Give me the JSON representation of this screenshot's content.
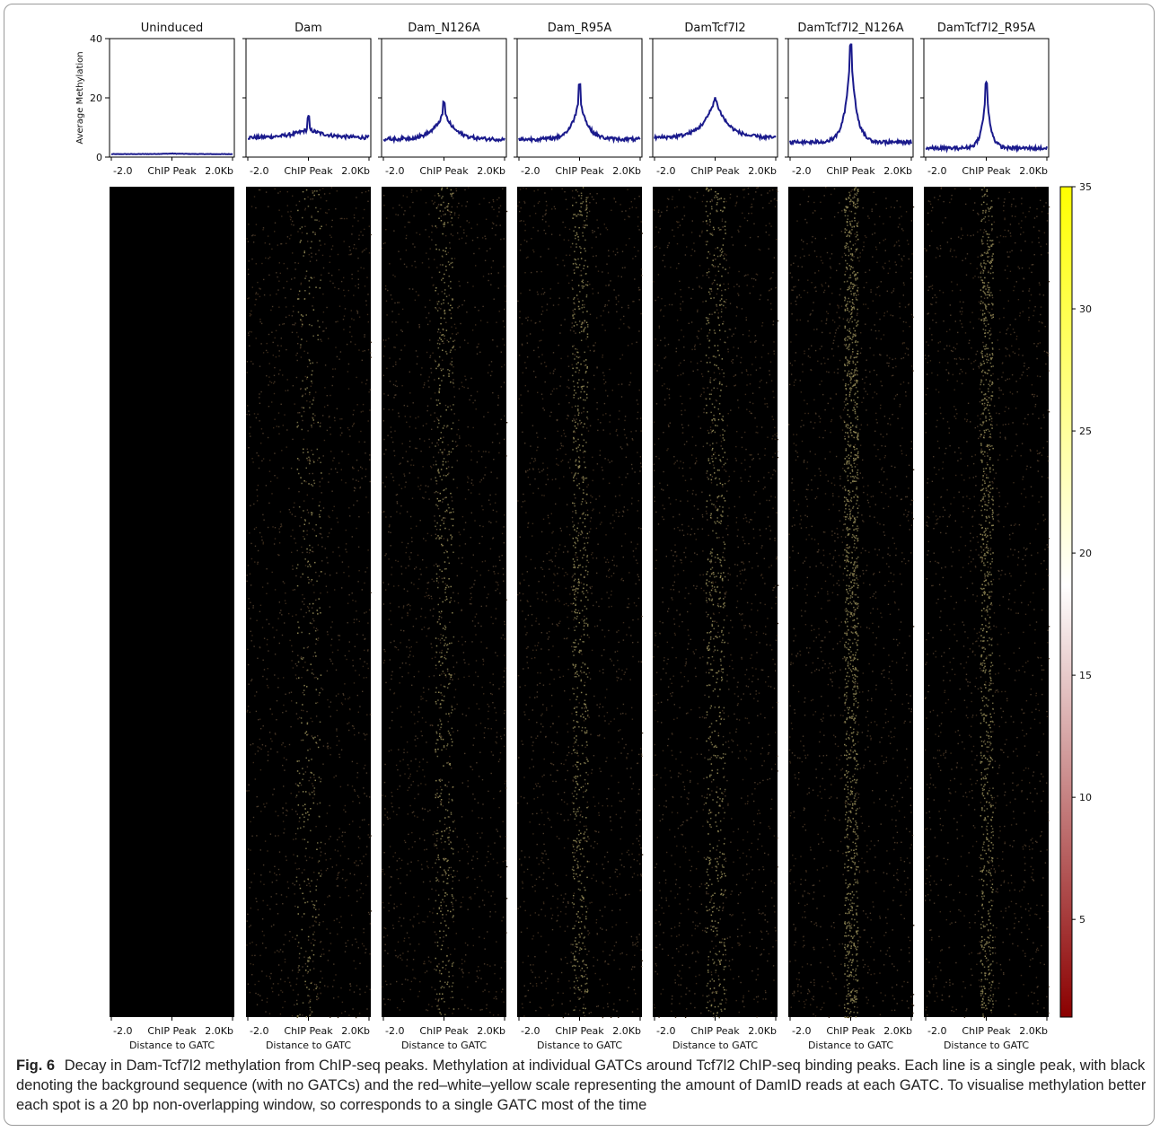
{
  "figure": {
    "profile_ylabel": "Average Methylation",
    "xtick_labels": [
      "-2.0",
      "ChIP Peak",
      "2.0Kb"
    ],
    "xlabel": "Distance to GATC"
  },
  "caption": {
    "label": "Fig. 6",
    "text": "Decay in Dam-Tcf7l2 methylation from ChIP-seq peaks. Methylation at individual GATCs around Tcf7l2 ChIP-seq binding peaks. Each line is a single peak, with black denoting the background sequence (with no GATCs) and the red–white–yellow scale representing the amount of DamID reads at each GATC. To visualise methylation better each spot is a 20 bp non-overlapping window, so corresponds to a single GATC most of the time"
  },
  "colors": {
    "profile_line": "#1a1a8c",
    "heatmap_background": "#000000",
    "colorbar_low": "#8b0000",
    "colorbar_mid": "#ffffff",
    "colorbar_high": "#ffff00"
  },
  "chart_data": [
    {
      "type": "line",
      "description_role": "average profiles",
      "ylabel": "Average Methylation",
      "ylim": [
        0,
        40
      ],
      "yticks": [
        0,
        20,
        40
      ],
      "x_range": [
        -2.0,
        2.0
      ],
      "x_tick_labels": [
        "-2.0",
        "ChIP Peak",
        "2.0Kb"
      ],
      "series": [
        {
          "name": "Uninduced",
          "baseline": 1.0,
          "peak": 1.2,
          "width": 0.5
        },
        {
          "name": "Dam",
          "baseline": 6.5,
          "peak": 9.5,
          "width": 0.6,
          "spike": 13.5
        },
        {
          "name": "Dam_N126A",
          "baseline": 6.0,
          "peak": 15.5,
          "width": 0.35,
          "spike": 18.5
        },
        {
          "name": "Dam_R95A",
          "baseline": 6.0,
          "peak": 20.5,
          "width": 0.25,
          "spike": 25.0
        },
        {
          "name": "DamTcf7l2",
          "baseline": 6.5,
          "peak": 20.0,
          "width": 0.4
        },
        {
          "name": "DamTcf7l2_N126A",
          "baseline": 5.0,
          "peak": 37.0,
          "width": 0.18,
          "spike": 38.0
        },
        {
          "name": "DamTcf7l2_R95A",
          "baseline": 3.0,
          "peak": 24.0,
          "width": 0.14,
          "spike": 25.0
        }
      ]
    },
    {
      "type": "heatmap",
      "description_role": "per-peak methylation",
      "xlabel": "Distance to GATC",
      "x_tick_labels": [
        "-2.0",
        "ChIP Peak",
        "2.0Kb"
      ],
      "panels": [
        "Uninduced",
        "Dam",
        "Dam_N126A",
        "Dam_R95A",
        "DamTcf7l2",
        "DamTcf7l2_N126A",
        "DamTcf7l2_R95A"
      ],
      "colorbar": {
        "range": [
          0,
          35
        ],
        "ticks": [
          5,
          10,
          15,
          20,
          25,
          30,
          35
        ],
        "colormap": [
          "#8b0000",
          "#ffffff",
          "#ffff00"
        ]
      }
    }
  ]
}
